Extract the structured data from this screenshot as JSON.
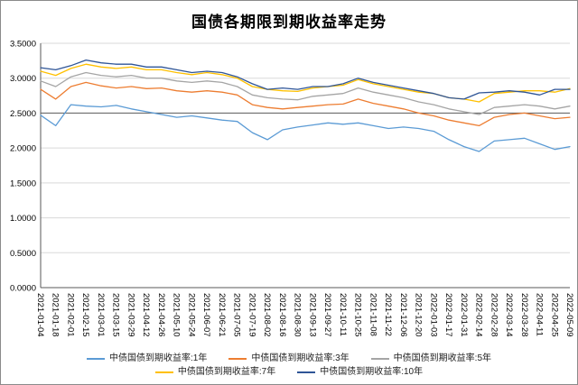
{
  "title": "国债各期限到期收益率走势",
  "chart_data": {
    "type": "line",
    "title": "国债各期限到期收益率走势",
    "xlabel": "",
    "ylabel": "",
    "ylim": [
      0,
      3.5
    ],
    "ytick_step": 0.5,
    "yticks": [
      "0.0000",
      "0.5000",
      "1.0000",
      "1.5000",
      "2.0000",
      "2.5000",
      "3.0000",
      "3.5000"
    ],
    "reference_line": 2.5,
    "grid": true,
    "legend_position": "bottom",
    "x": [
      "2021-01-04",
      "2021-01-18",
      "2021-02-01",
      "2021-02-15",
      "2021-03-01",
      "2021-03-15",
      "2021-03-29",
      "2021-04-12",
      "2021-04-26",
      "2021-05-10",
      "2021-05-24",
      "2021-06-07",
      "2021-06-21",
      "2021-07-05",
      "2021-07-19",
      "2021-08-02",
      "2021-08-16",
      "2021-08-30",
      "2021-09-13",
      "2021-09-27",
      "2021-10-11",
      "2021-10-25",
      "2021-11-08",
      "2021-11-22",
      "2021-12-06",
      "2021-12-20",
      "2022-01-03",
      "2022-01-17",
      "2022-01-31",
      "2022-02-14",
      "2022-02-28",
      "2022-03-14",
      "2022-03-28",
      "2022-04-11",
      "2022-04-25",
      "2022-05-09"
    ],
    "series": [
      {
        "name": "中债国债到期收益率:1年",
        "color": "#5B9BD5",
        "values": [
          2.47,
          2.32,
          2.62,
          2.6,
          2.59,
          2.61,
          2.56,
          2.52,
          2.48,
          2.44,
          2.46,
          2.43,
          2.4,
          2.38,
          2.22,
          2.12,
          2.26,
          2.3,
          2.33,
          2.36,
          2.34,
          2.36,
          2.32,
          2.28,
          2.3,
          2.28,
          2.24,
          2.12,
          2.02,
          1.95,
          2.1,
          2.12,
          2.14,
          2.06,
          1.98,
          2.02
        ]
      },
      {
        "name": "中债国债到期收益率:3年",
        "color": "#ED7D31",
        "values": [
          2.84,
          2.7,
          2.88,
          2.94,
          2.89,
          2.86,
          2.88,
          2.85,
          2.86,
          2.82,
          2.8,
          2.82,
          2.8,
          2.76,
          2.62,
          2.58,
          2.56,
          2.58,
          2.6,
          2.62,
          2.63,
          2.7,
          2.64,
          2.6,
          2.56,
          2.5,
          2.46,
          2.4,
          2.36,
          2.32,
          2.44,
          2.48,
          2.5,
          2.46,
          2.42,
          2.44
        ]
      },
      {
        "name": "中债国债到期收益率:5年",
        "color": "#A5A5A5",
        "values": [
          2.96,
          2.88,
          3.02,
          3.08,
          3.04,
          3.02,
          3.04,
          3.0,
          3.0,
          2.96,
          2.94,
          2.96,
          2.94,
          2.88,
          2.76,
          2.72,
          2.7,
          2.69,
          2.74,
          2.76,
          2.78,
          2.86,
          2.8,
          2.76,
          2.72,
          2.66,
          2.62,
          2.56,
          2.52,
          2.48,
          2.58,
          2.6,
          2.62,
          2.6,
          2.56,
          2.6
        ]
      },
      {
        "name": "中债国债到期收益率:7年",
        "color": "#FFC000",
        "values": [
          3.1,
          3.04,
          3.14,
          3.2,
          3.16,
          3.14,
          3.16,
          3.12,
          3.12,
          3.08,
          3.05,
          3.08,
          3.05,
          3.0,
          2.88,
          2.84,
          2.82,
          2.81,
          2.86,
          2.88,
          2.9,
          2.98,
          2.92,
          2.88,
          2.84,
          2.8,
          2.78,
          2.72,
          2.7,
          2.66,
          2.78,
          2.8,
          2.82,
          2.82,
          2.8,
          2.85
        ]
      },
      {
        "name": "中债国债到期收益率:10年",
        "color": "#2F5597",
        "values": [
          3.15,
          3.12,
          3.18,
          3.26,
          3.22,
          3.2,
          3.2,
          3.16,
          3.16,
          3.12,
          3.08,
          3.1,
          3.08,
          3.02,
          2.92,
          2.84,
          2.86,
          2.84,
          2.88,
          2.88,
          2.92,
          3.0,
          2.94,
          2.9,
          2.86,
          2.82,
          2.78,
          2.72,
          2.7,
          2.79,
          2.8,
          2.82,
          2.8,
          2.76,
          2.84,
          2.84
        ]
      }
    ]
  }
}
